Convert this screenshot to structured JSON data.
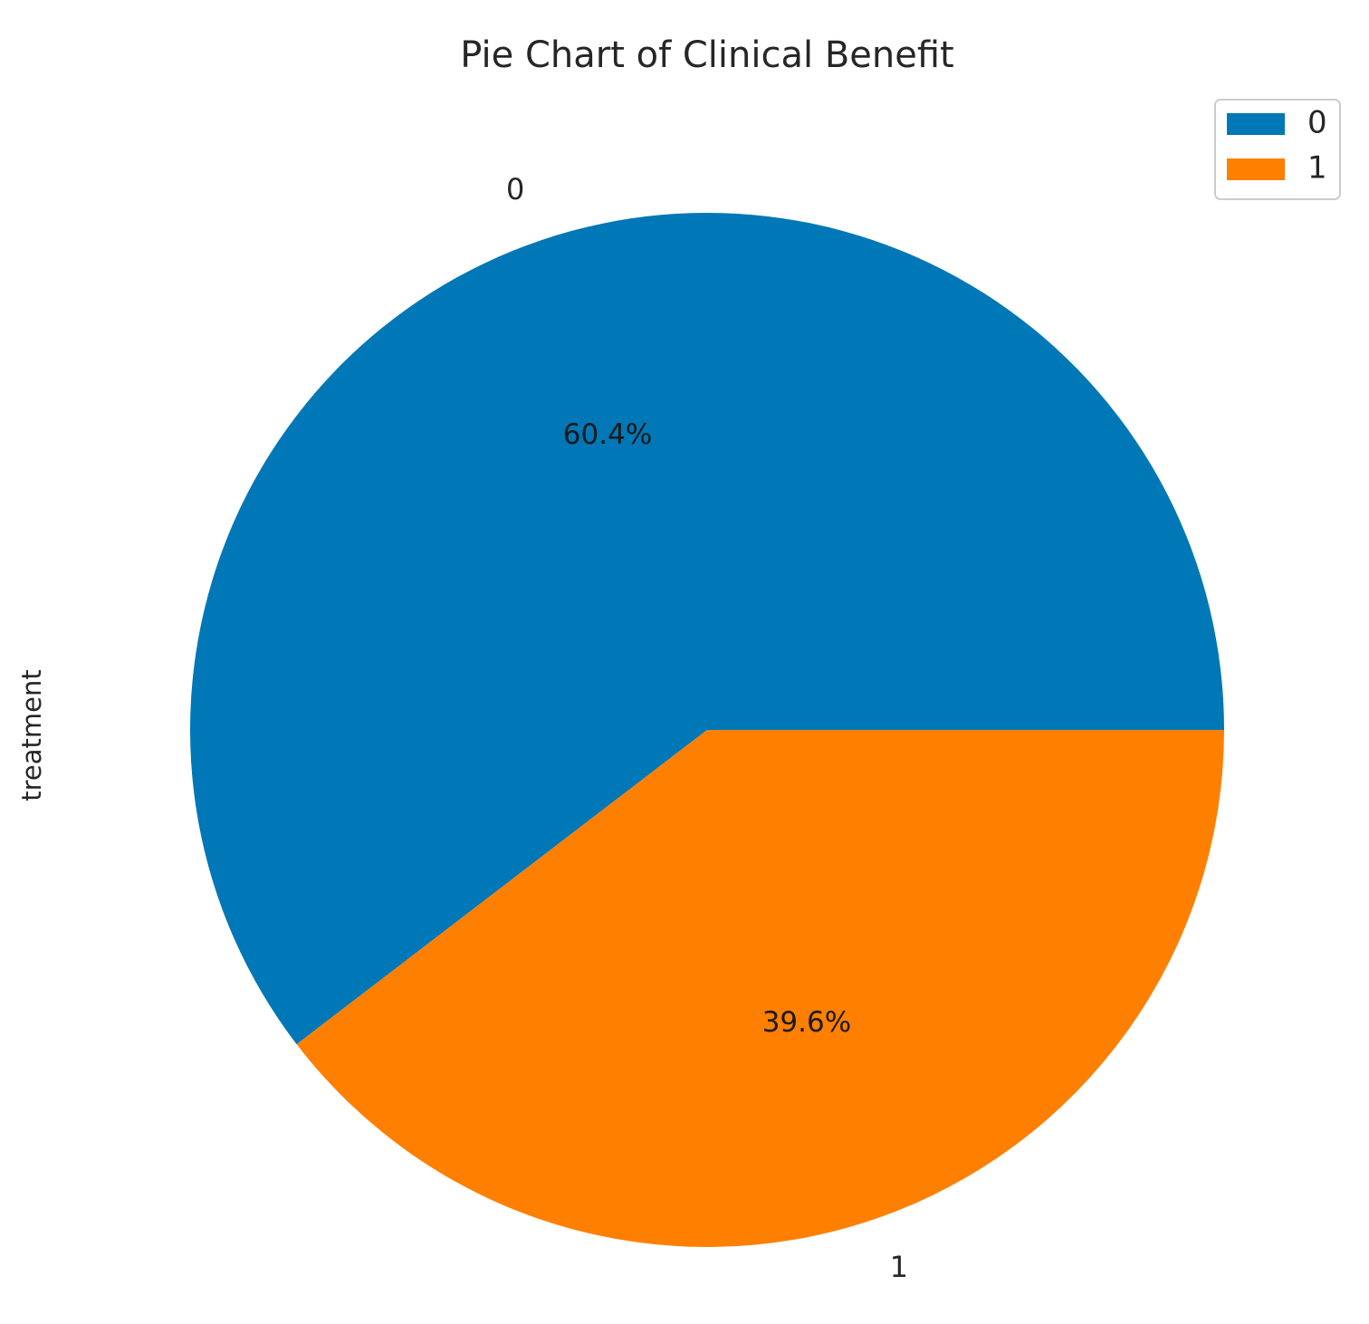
{
  "chart_data": {
    "type": "pie",
    "title": "Pie Chart of Clinical Benefit",
    "ylabel": "treatment",
    "categories": [
      "0",
      "1"
    ],
    "values": [
      60.4,
      39.6
    ],
    "value_labels": [
      "60.4%",
      "39.6%"
    ],
    "colors": [
      "#0077b6",
      "#ff7f00"
    ],
    "legend": {
      "placement": "top-right",
      "entries": [
        "0",
        "1"
      ]
    }
  }
}
